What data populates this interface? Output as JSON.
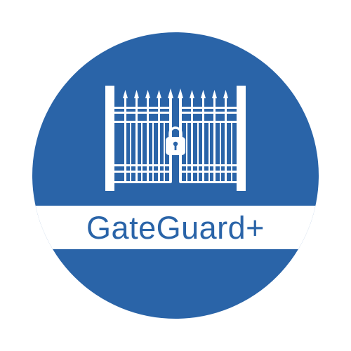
{
  "brand": {
    "name": "GateGuard+",
    "icon": "locked-gate-icon"
  },
  "colors": {
    "badge_blue": "#2a64a8",
    "foreground_white": "#ffffff",
    "page_background": "#ffffff"
  }
}
